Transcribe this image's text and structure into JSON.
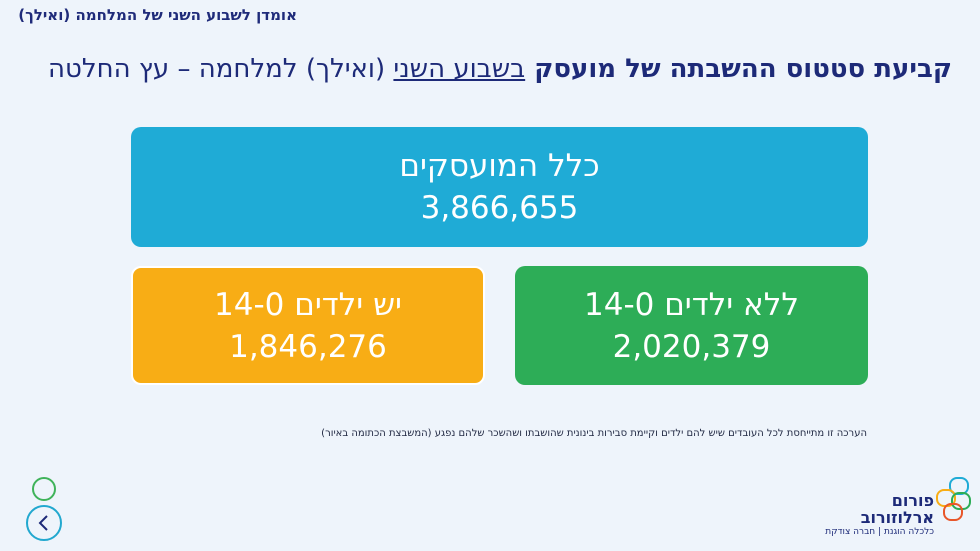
{
  "header": {
    "section_label": "אומדן לשבוע השני של המלחמה (ואילך)"
  },
  "title": {
    "part1": "קביעת סטטוס ההשבתה של מועסק ",
    "part2": "בשבוע השני",
    "part3": " (ואילך) למלחמה – עץ החלטה"
  },
  "tree": {
    "all": {
      "label": "כלל המועסקים",
      "value": "3,866,655",
      "color": "#1fabd6"
    },
    "with_kids": {
      "label": "יש ילדים 14-0",
      "value": "1,846,276",
      "color": "#f8ad15"
    },
    "without_kids": {
      "label": "ללא ילדים 14-0",
      "value": "2,020,379",
      "color": "#2dad57"
    }
  },
  "footnote": "הערכה זו מתייחסת לכל העובדים שיש להם ילדים וקיימת סבירות בינונית שהושבתו ושהשכר שלהם נפגע (המשבצת הכתומה באיור)",
  "navigation": {
    "back_icon": "chevron-left-icon",
    "dot_icon": "circle-icon"
  },
  "logo": {
    "name_line1": "פורום",
    "name_line2": "ארלוזורוב",
    "tagline": "כלכלה הוגנת | חברה צודקת"
  }
}
